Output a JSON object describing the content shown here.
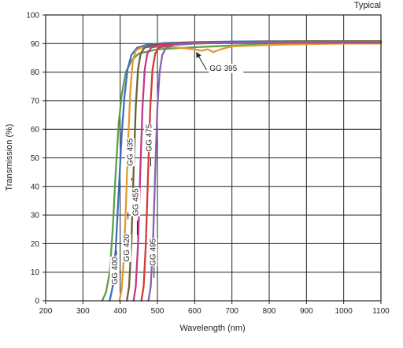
{
  "chart_data": {
    "type": "line",
    "note": "Typical",
    "xlabel": "Wavelength (nm)",
    "ylabel": "Transmission (%)",
    "xlim": [
      200,
      1100
    ],
    "ylim": [
      0,
      100
    ],
    "x_ticks": [
      "200",
      "300",
      "400",
      "500",
      "600",
      "700",
      "800",
      "900",
      "1000",
      "1100"
    ],
    "y_ticks": [
      "0",
      "10",
      "20",
      "30",
      "40",
      "50",
      "60",
      "70",
      "80",
      "90",
      "100"
    ],
    "grid": true,
    "series": [
      {
        "name": "GG 395",
        "color": "#5aa04a",
        "points": [
          [
            352,
            0
          ],
          [
            362,
            3
          ],
          [
            372,
            10
          ],
          [
            380,
            25
          ],
          [
            388,
            45
          ],
          [
            396,
            62
          ],
          [
            404,
            72
          ],
          [
            415,
            80
          ],
          [
            430,
            84
          ],
          [
            450,
            86.5
          ],
          [
            500,
            88
          ],
          [
            600,
            88.7
          ],
          [
            700,
            89.3
          ],
          [
            800,
            89.7
          ],
          [
            900,
            90
          ],
          [
            1000,
            90.2
          ],
          [
            1100,
            90.3
          ]
        ]
      },
      {
        "name": "GG 400",
        "color": "#3f6fbf",
        "points": [
          [
            372,
            0
          ],
          [
            380,
            5
          ],
          [
            388,
            18
          ],
          [
            396,
            38
          ],
          [
            404,
            58
          ],
          [
            412,
            72
          ],
          [
            420,
            81
          ],
          [
            430,
            86
          ],
          [
            445,
            88.5
          ],
          [
            470,
            89.5
          ],
          [
            520,
            90.2
          ],
          [
            600,
            90.5
          ],
          [
            700,
            90.7
          ],
          [
            800,
            90.8
          ],
          [
            900,
            90.8
          ],
          [
            1000,
            90.8
          ],
          [
            1100,
            90.8
          ]
        ]
      },
      {
        "name": "GG 420",
        "color": "#e39a2d",
        "points": [
          [
            398,
            0
          ],
          [
            404,
            4
          ],
          [
            410,
            15
          ],
          [
            416,
            35
          ],
          [
            422,
            58
          ],
          [
            428,
            75
          ],
          [
            434,
            84
          ],
          [
            442,
            87.5
          ],
          [
            455,
            88.5
          ],
          [
            480,
            88.8
          ],
          [
            520,
            88.9
          ],
          [
            560,
            88.5
          ],
          [
            600,
            88
          ],
          [
            620,
            87.5
          ],
          [
            635,
            88
          ],
          [
            650,
            87
          ],
          [
            670,
            88
          ],
          [
            700,
            89
          ],
          [
            800,
            89.5
          ],
          [
            900,
            89.8
          ],
          [
            1000,
            90
          ],
          [
            1100,
            90
          ]
        ]
      },
      {
        "name": "GG 435",
        "color": "#6b6136",
        "points": [
          [
            418,
            0
          ],
          [
            424,
            5
          ],
          [
            430,
            20
          ],
          [
            436,
            45
          ],
          [
            442,
            68
          ],
          [
            448,
            81
          ],
          [
            455,
            86.5
          ],
          [
            465,
            88.5
          ],
          [
            490,
            89.5
          ],
          [
            540,
            90
          ],
          [
            600,
            90.3
          ],
          [
            700,
            90.6
          ],
          [
            800,
            90.7
          ],
          [
            900,
            90.8
          ],
          [
            1000,
            90.8
          ],
          [
            1100,
            90.8
          ]
        ]
      },
      {
        "name": "GG 455",
        "color": "#c2398a",
        "points": [
          [
            436,
            0
          ],
          [
            442,
            5
          ],
          [
            448,
            20
          ],
          [
            454,
            45
          ],
          [
            460,
            68
          ],
          [
            466,
            81
          ],
          [
            473,
            86.5
          ],
          [
            483,
            88.5
          ],
          [
            510,
            89.5
          ],
          [
            560,
            90
          ],
          [
            650,
            90.3
          ],
          [
            750,
            90.5
          ],
          [
            850,
            90.6
          ],
          [
            950,
            90.6
          ],
          [
            1100,
            90.6
          ]
        ]
      },
      {
        "name": "GG 475",
        "color": "#d6393a",
        "points": [
          [
            457,
            0
          ],
          [
            463,
            5
          ],
          [
            469,
            20
          ],
          [
            475,
            45
          ],
          [
            481,
            68
          ],
          [
            487,
            81
          ],
          [
            494,
            86.5
          ],
          [
            504,
            88.5
          ],
          [
            530,
            89.5
          ],
          [
            580,
            90
          ],
          [
            680,
            90.2
          ],
          [
            780,
            90.3
          ],
          [
            880,
            90.3
          ],
          [
            1000,
            90.3
          ],
          [
            1100,
            90.3
          ]
        ]
      },
      {
        "name": "GG 495",
        "color": "#8862b0",
        "points": [
          [
            476,
            0
          ],
          [
            482,
            5
          ],
          [
            488,
            20
          ],
          [
            494,
            45
          ],
          [
            500,
            68
          ],
          [
            506,
            80
          ],
          [
            513,
            86
          ],
          [
            523,
            88.5
          ],
          [
            545,
            89.5
          ],
          [
            600,
            90
          ],
          [
            700,
            90.3
          ],
          [
            800,
            90.5
          ],
          [
            900,
            90.6
          ],
          [
            1000,
            90.6
          ],
          [
            1100,
            90.6
          ]
        ]
      }
    ],
    "annotations": [
      {
        "text": "GG 395",
        "series": "GG 395"
      },
      {
        "text": "GG 400",
        "series": "GG 400"
      },
      {
        "text": "GG 420",
        "series": "GG 420"
      },
      {
        "text": "GG 435",
        "series": "GG 435"
      },
      {
        "text": "GG 455",
        "series": "GG 455"
      },
      {
        "text": "GG 475",
        "series": "GG 475"
      },
      {
        "text": "GG 495",
        "series": "GG 495"
      }
    ]
  }
}
